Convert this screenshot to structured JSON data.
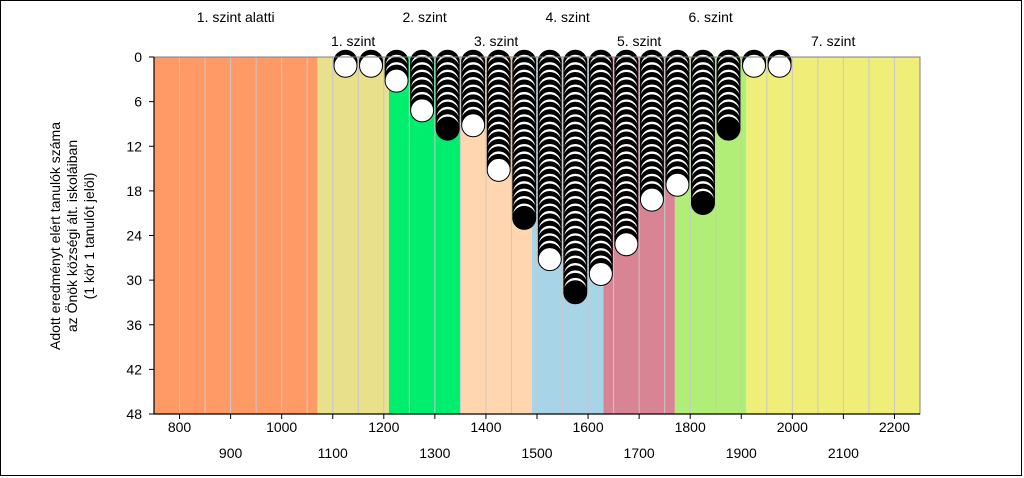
{
  "chart_data": {
    "type": "scatter",
    "subtype": "dot-column histogram",
    "ylabel_lines": [
      "Adott eredményt elért tanulók száma",
      "az Önök községi ált. iskoláiban",
      "(1 kör 1 tanulót jelöl)"
    ],
    "xlim": [
      750,
      2250
    ],
    "ylim": [
      0,
      48
    ],
    "y_inverted": true,
    "yticks": [
      "0",
      "6",
      "12",
      "18",
      "24",
      "30",
      "36",
      "42",
      "48"
    ],
    "xticks_upper": [
      "800",
      "1000",
      "1200",
      "1400",
      "1600",
      "1800",
      "2000",
      "2200"
    ],
    "xticks_lower": [
      "900",
      "1100",
      "1300",
      "1500",
      "1700",
      "1900",
      "2100"
    ],
    "levels": [
      {
        "label": "1. szint alatti",
        "from": 750,
        "to": 1070,
        "color": "#FF9966",
        "row": "top"
      },
      {
        "label": "1. szint",
        "from": 1070,
        "to": 1210,
        "color": "#E8E08A",
        "row": "bottom"
      },
      {
        "label": "2. szint",
        "from": 1210,
        "to": 1350,
        "color": "#00EE6E",
        "row": "top"
      },
      {
        "label": "3. szint",
        "from": 1350,
        "to": 1490,
        "color": "#FFD6B0",
        "row": "bottom"
      },
      {
        "label": "4. szint",
        "from": 1490,
        "to": 1630,
        "color": "#A8D4E8",
        "row": "top"
      },
      {
        "label": "5. szint",
        "from": 1630,
        "to": 1770,
        "color": "#D98494",
        "row": "bottom"
      },
      {
        "label": "6. szint",
        "from": 1770,
        "to": 1910,
        "color": "#B0EE78",
        "row": "top"
      },
      {
        "label": "7. szint",
        "from": 1910,
        "to": 2250,
        "color": "#EEEE78",
        "row": "bottom"
      }
    ],
    "bin_width": 25,
    "columns": [
      {
        "x": 1125,
        "count": 1
      },
      {
        "x": 1175,
        "count": 1
      },
      {
        "x": 1225,
        "count": 3
      },
      {
        "x": 1275,
        "count": 7
      },
      {
        "x": 1325,
        "count": 10
      },
      {
        "x": 1375,
        "count": 9
      },
      {
        "x": 1425,
        "count": 15
      },
      {
        "x": 1475,
        "count": 22
      },
      {
        "x": 1525,
        "count": 27
      },
      {
        "x": 1575,
        "count": 32
      },
      {
        "x": 1625,
        "count": 29
      },
      {
        "x": 1675,
        "count": 25
      },
      {
        "x": 1725,
        "count": 19
      },
      {
        "x": 1775,
        "count": 17
      },
      {
        "x": 1825,
        "count": 20
      },
      {
        "x": 1875,
        "count": 10
      },
      {
        "x": 1925,
        "count": 1
      },
      {
        "x": 1975,
        "count": 1
      }
    ],
    "grid": "vertical",
    "colors": {
      "outline": "#000000",
      "circle_fill": "#ffffff",
      "circle_shadow": "#000000",
      "gridline": "#c8c8c8"
    }
  }
}
